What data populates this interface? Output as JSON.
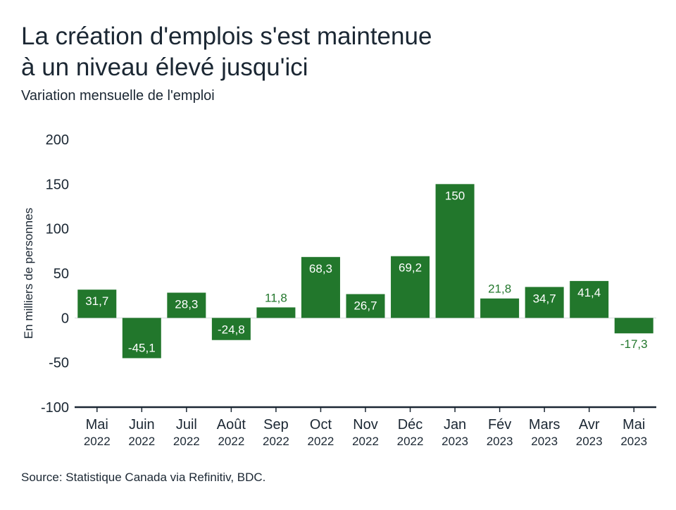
{
  "title_line1": "La création d'emplois s'est maintenue",
  "title_line2": "à un niveau élevé jusqu'ici",
  "subtitle": "Variation mensuelle de l'emploi",
  "source": "Source: Statistique Canada via Refinitiv, BDC.",
  "colors": {
    "bar": "#22772c",
    "label_inside": "#ffffff",
    "label_outside": "#22772c",
    "axis": "#1b2733"
  },
  "chart_data": {
    "type": "bar",
    "ylabel": "En milliers de personnes",
    "ylim": [
      -100,
      200
    ],
    "yticks": [
      200,
      150,
      100,
      50,
      0,
      -50,
      -100
    ],
    "grid": false,
    "categories": [
      {
        "month": "Mai",
        "year": "2022"
      },
      {
        "month": "Juin",
        "year": "2022"
      },
      {
        "month": "Juil",
        "year": "2022"
      },
      {
        "month": "Août",
        "year": "2022"
      },
      {
        "month": "Sep",
        "year": "2022"
      },
      {
        "month": "Oct",
        "year": "2022"
      },
      {
        "month": "Nov",
        "year": "2022"
      },
      {
        "month": "Déc",
        "year": "2022"
      },
      {
        "month": "Jan",
        "year": "2023"
      },
      {
        "month": "Fév",
        "year": "2023"
      },
      {
        "month": "Mars",
        "year": "2023"
      },
      {
        "month": "Avr",
        "year": "2023"
      },
      {
        "month": "Mai",
        "year": "2023"
      }
    ],
    "values": [
      31.7,
      -45.1,
      28.3,
      -24.8,
      11.8,
      68.3,
      26.7,
      69.2,
      150,
      21.8,
      34.7,
      41.4,
      -17.3
    ],
    "labels": [
      "31,7",
      "-45,1",
      "28,3",
      "-24,8",
      "11,8",
      "68,3",
      "26,7",
      "69,2",
      "150",
      "21,8",
      "34,7",
      "41,4",
      "-17,3"
    ]
  }
}
